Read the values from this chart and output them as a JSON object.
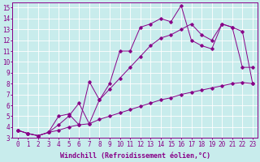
{
  "background_color": "#c8ecec",
  "grid_color": "#b8d8d8",
  "line_color": "#880088",
  "marker_color": "#880088",
  "xlabel": "Windchill (Refroidissement éolien,°C)",
  "xlabel_fontsize": 6,
  "tick_fontsize": 5.5,
  "xlim": [
    -0.5,
    23.5
  ],
  "ylim": [
    3,
    15.5
  ],
  "xticks": [
    0,
    1,
    2,
    3,
    4,
    5,
    6,
    7,
    8,
    9,
    10,
    11,
    12,
    13,
    14,
    15,
    16,
    17,
    18,
    19,
    20,
    21,
    22,
    23
  ],
  "yticks": [
    3,
    4,
    5,
    6,
    7,
    8,
    9,
    10,
    11,
    12,
    13,
    14,
    15
  ],
  "line1_x": [
    0,
    1,
    2,
    3,
    4,
    5,
    6,
    7,
    8,
    9,
    10,
    11,
    12,
    13,
    14,
    15,
    16,
    17,
    18,
    19,
    20,
    21,
    22,
    23
  ],
  "line1_y": [
    3.7,
    3.4,
    3.2,
    3.5,
    3.7,
    4.0,
    4.2,
    4.3,
    4.7,
    5.0,
    5.3,
    5.6,
    5.9,
    6.2,
    6.5,
    6.7,
    7.0,
    7.2,
    7.4,
    7.6,
    7.8,
    8.0,
    8.1,
    8.0
  ],
  "line2_x": [
    0,
    1,
    2,
    3,
    4,
    5,
    6,
    7,
    8,
    9,
    10,
    11,
    12,
    13,
    14,
    15,
    16,
    17,
    18,
    19,
    20,
    21,
    22,
    23
  ],
  "line2_y": [
    3.7,
    3.4,
    3.2,
    3.5,
    4.2,
    5.0,
    6.2,
    4.3,
    6.5,
    7.5,
    8.5,
    9.5,
    10.5,
    11.5,
    12.2,
    12.5,
    13.0,
    13.5,
    12.5,
    12.0,
    13.5,
    13.2,
    12.8,
    8.0
  ],
  "line3_x": [
    0,
    1,
    2,
    3,
    4,
    5,
    6,
    7,
    8,
    9,
    10,
    11,
    12,
    13,
    14,
    15,
    16,
    17,
    18,
    19,
    20,
    21,
    22,
    23
  ],
  "line3_y": [
    3.7,
    3.4,
    3.2,
    3.5,
    5.0,
    5.2,
    4.2,
    8.2,
    6.5,
    8.0,
    11.0,
    11.0,
    13.2,
    13.5,
    14.0,
    13.7,
    15.2,
    12.0,
    11.5,
    11.2,
    13.5,
    13.2,
    9.5,
    9.5
  ]
}
